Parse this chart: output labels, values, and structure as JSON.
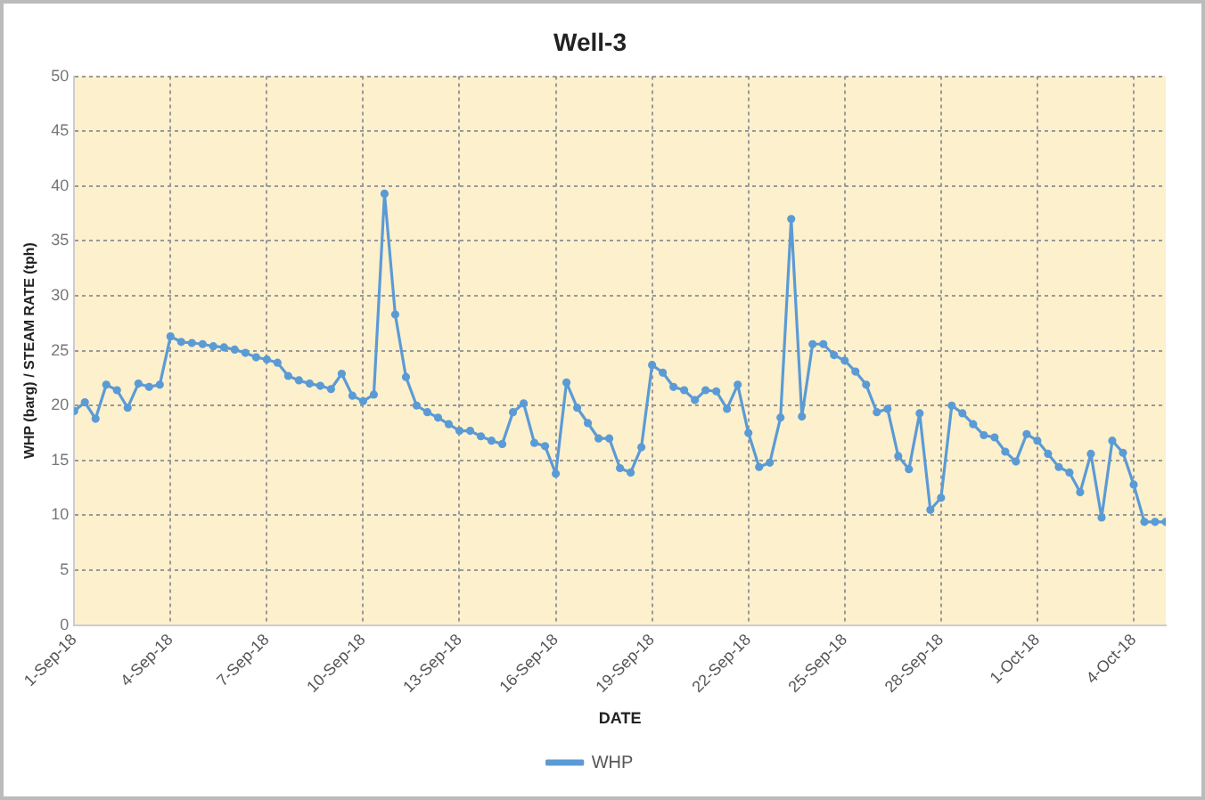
{
  "chart_data": {
    "type": "line",
    "title": "Well-3",
    "xlabel": "DATE",
    "ylabel": "WHP (barg) / STEAM RATE (tph)",
    "x": [
      "--09-01T00:00",
      "--09-01T08:00",
      "--09-01T16:00",
      "--09-02T00:00",
      "--09-02T08:00",
      "--09-02T16:00",
      "--09-03T00:00",
      "--09-03T08:00",
      "--09-03T16:00",
      "--09-04T00:00",
      "--09-04T08:00",
      "--09-04T16:00",
      "--09-05T00:00",
      "--09-05T08:00",
      "--09-05T16:00",
      "--09-06T00:00",
      "--09-06T08:00",
      "--09-06T16:00",
      "--09-07T00:00",
      "--09-07T08:00",
      "--09-07T16:00",
      "--09-08T00:00",
      "--09-08T08:00",
      "--09-08T16:00",
      "--09-09T00:00",
      "--09-09T08:00",
      "--09-09T16:00",
      "--09-10T00:00",
      "--09-10T08:00",
      "--09-10T16:00",
      "--09-11T00:00",
      "--09-11T08:00",
      "--09-11T16:00",
      "--09-12T00:00",
      "--09-12T08:00",
      "--09-12T16:00",
      "--09-13T00:00",
      "--09-13T08:00",
      "--09-13T16:00",
      "--09-14T00:00",
      "--09-14T08:00",
      "--09-14T16:00",
      "--09-15T00:00",
      "--09-15T08:00",
      "--09-15T16:00",
      "--09-16T00:00",
      "--09-16T08:00",
      "--09-16T16:00",
      "--09-17T00:00",
      "--09-17T08:00",
      "--09-17T16:00",
      "--09-18T00:00",
      "--09-18T08:00",
      "--09-18T16:00",
      "--09-19T00:00",
      "--09-19T08:00",
      "--09-19T16:00",
      "--09-20T00:00",
      "--09-20T08:00",
      "--09-20T16:00",
      "--09-21T00:00",
      "--09-21T08:00",
      "--09-21T16:00",
      "--09-22T00:00",
      "--09-22T08:00",
      "--09-22T16:00",
      "--09-23T00:00",
      "--09-23T08:00",
      "--09-23T16:00",
      "--09-24T00:00",
      "--09-24T08:00",
      "--09-24T16:00",
      "--09-25T00:00",
      "--09-25T08:00",
      "--09-25T16:00",
      "--09-26T00:00",
      "--09-26T08:00",
      "--09-26T16:00",
      "--09-27T00:00",
      "--09-27T08:00",
      "--09-27T16:00",
      "--09-28T00:00",
      "--09-28T08:00",
      "--09-28T16:00",
      "--09-29T00:00",
      "--09-29T08:00",
      "--09-29T16:00",
      "--09-30T00:00",
      "--09-30T08:00",
      "--09-30T16:00",
      "--10-01T00:00",
      "--10-01T08:00",
      "--10-01T16:00",
      "--10-02T00:00",
      "--10-02T08:00",
      "--10-02T16:00",
      "--10-03T00:00",
      "--10-03T08:00",
      "--10-03T16:00",
      "--10-04T00:00",
      "--10-04T08:00",
      "--10-04T16:00",
      "--10-05T00:00"
    ],
    "series": [
      {
        "name": "WHP",
        "color": "#5b9bd5",
        "values": [
          19.5,
          20.3,
          18.8,
          21.9,
          21.4,
          19.8,
          22.0,
          21.7,
          21.9,
          26.3,
          25.8,
          25.7,
          25.6,
          25.4,
          25.3,
          25.1,
          24.8,
          24.4,
          24.2,
          23.9,
          22.7,
          22.3,
          22.0,
          21.8,
          21.5,
          22.9,
          20.9,
          20.4,
          21.0,
          39.3,
          28.3,
          22.6,
          20.0,
          19.4,
          18.9,
          18.3,
          17.7,
          17.7,
          17.2,
          16.8,
          16.5,
          19.4,
          20.2,
          16.6,
          16.3,
          13.8,
          22.1,
          19.8,
          18.4,
          17.0,
          17.0,
          14.3,
          13.9,
          16.2,
          23.7,
          23.0,
          21.7,
          21.4,
          20.5,
          21.4,
          21.3,
          19.7,
          21.9,
          17.5,
          14.4,
          14.8,
          18.9,
          37.0,
          19.0,
          25.6,
          25.6,
          24.6,
          24.1,
          23.1,
          21.9,
          19.4,
          19.7,
          15.4,
          14.2,
          19.3,
          10.5,
          11.6,
          20.0,
          19.3,
          18.3,
          17.3,
          17.1,
          15.8,
          14.9,
          17.4,
          16.8,
          15.6,
          14.4,
          13.9,
          12.1,
          15.6,
          9.8,
          16.8,
          15.7,
          12.8,
          9.4,
          9.4,
          9.4
        ]
      }
    ],
    "xlim": [
      "--09-01",
      "--10-05"
    ],
    "xticks": [
      {
        "value": "--09-01",
        "label": "1-Sep-18"
      },
      {
        "value": "--09-04",
        "label": "4-Sep-18"
      },
      {
        "value": "--09-07",
        "label": "7-Sep-18"
      },
      {
        "value": "--09-10",
        "label": "10-Sep-18"
      },
      {
        "value": "--09-13",
        "label": "13-Sep-18"
      },
      {
        "value": "--09-16",
        "label": "16-Sep-18"
      },
      {
        "value": "--09-19",
        "label": "19-Sep-18"
      },
      {
        "value": "--09-22",
        "label": "22-Sep-18"
      },
      {
        "value": "--09-25",
        "label": "25-Sep-18"
      },
      {
        "value": "--09-28",
        "label": "28-Sep-18"
      },
      {
        "value": "--10-01",
        "label": "1-Oct-18"
      },
      {
        "value": "--10-04",
        "label": "4-Oct-18"
      }
    ],
    "ylim": [
      0,
      50
    ],
    "yticks": [
      0,
      5,
      10,
      15,
      20,
      25,
      30,
      35,
      40,
      45,
      50
    ],
    "grid": true,
    "legend": "bottom",
    "marker": "circle",
    "line_style": "solid"
  }
}
